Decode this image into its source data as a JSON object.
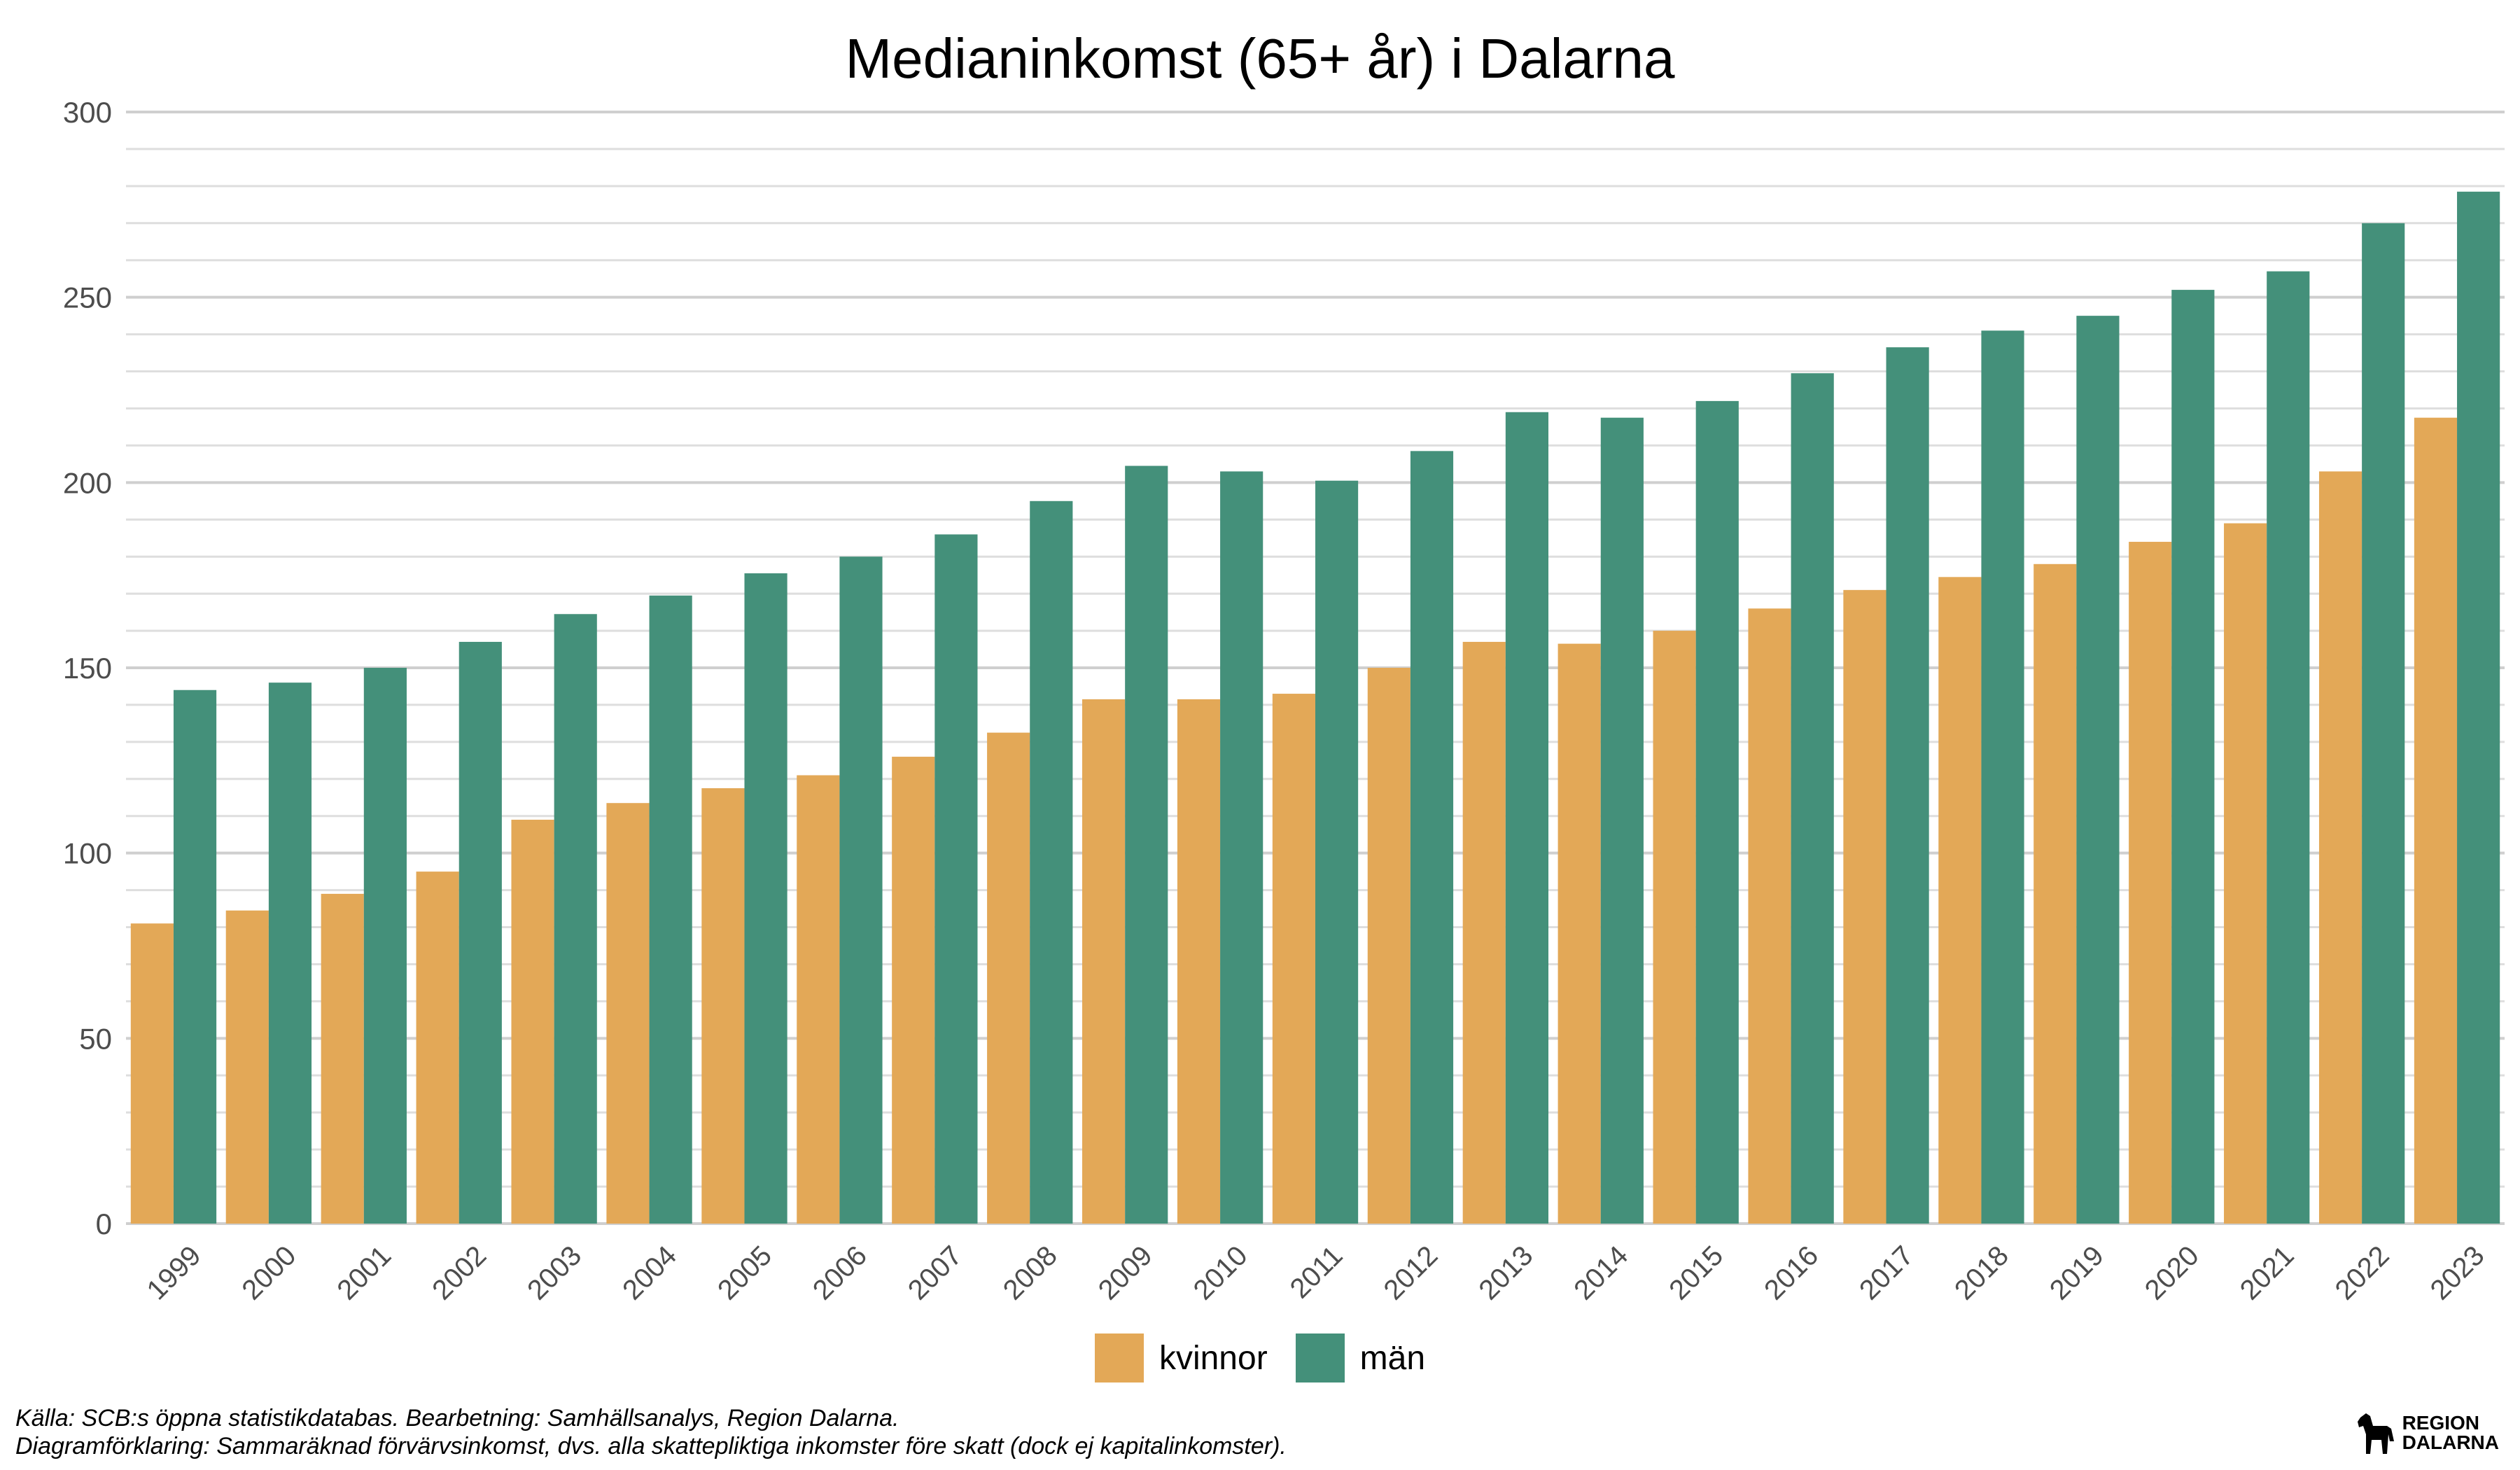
{
  "chart_data": {
    "type": "bar",
    "title": "Medianinkomst (65+ år) i Dalarna",
    "xlabel": "",
    "ylabel": "",
    "ylim": [
      0,
      300
    ],
    "yticks": [
      0,
      50,
      100,
      150,
      200,
      250,
      300
    ],
    "grid": true,
    "legend_position": "bottom",
    "categories": [
      "1999",
      "2000",
      "2001",
      "2002",
      "2003",
      "2004",
      "2005",
      "2006",
      "2007",
      "2008",
      "2009",
      "2010",
      "2011",
      "2012",
      "2013",
      "2014",
      "2015",
      "2016",
      "2017",
      "2018",
      "2019",
      "2020",
      "2021",
      "2022",
      "2023"
    ],
    "series": [
      {
        "name": "kvinnor",
        "color": "#E3A857",
        "values": [
          81,
          84.5,
          89,
          95,
          109,
          113.5,
          117.5,
          121,
          126,
          132.5,
          141.5,
          141.5,
          143,
          150,
          157,
          156.5,
          160,
          166,
          171,
          174.5,
          178,
          184,
          189,
          203,
          217.5
        ]
      },
      {
        "name": "män",
        "color": "#44907A",
        "values": [
          144,
          146,
          150,
          157,
          164.5,
          169.5,
          175.5,
          180,
          186,
          195,
          204.5,
          203,
          200.5,
          208.5,
          219,
          217.5,
          222,
          229.5,
          236.5,
          241,
          245,
          252,
          257,
          270,
          278.5
        ]
      }
    ]
  },
  "captions": {
    "source": "Källa: SCB:s öppna statistikdatabas. Bearbetning: Samhällsanalys, Region Dalarna.",
    "explanation": "Diagramförklaring: Sammaräknad förvärvsinkomst, dvs. alla skattepliktiga inkomster före skatt (dock ej kapitalinkomster)."
  },
  "logo": {
    "line1": "REGION",
    "line2": "DALARNA",
    "icon": "dala-horse-icon"
  }
}
